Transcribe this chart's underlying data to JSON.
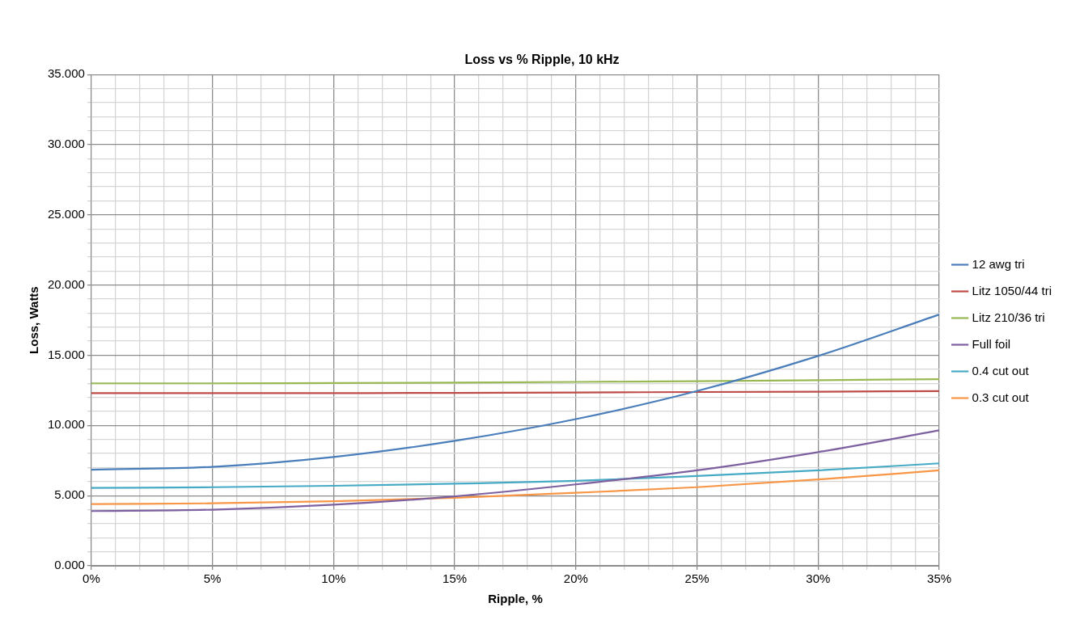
{
  "chart_data": {
    "type": "line",
    "title": "Loss vs % Ripple, 10 kHz",
    "xlabel": "Ripple, %",
    "ylabel": "Loss, Watts",
    "x": [
      0,
      5,
      10,
      15,
      20,
      25,
      30,
      35
    ],
    "series": [
      {
        "name": "12 awg tri",
        "color": "#4a7ebb",
        "values": [
          6.85,
          7.05,
          7.75,
          8.9,
          10.45,
          12.45,
          14.95,
          17.9
        ]
      },
      {
        "name": "Litz 1050/44 tri",
        "color": "#be4b48",
        "values": [
          12.3,
          12.3,
          12.3,
          12.32,
          12.35,
          12.38,
          12.4,
          12.45
        ]
      },
      {
        "name": "Litz 210/36 tri",
        "color": "#98b954",
        "values": [
          13.0,
          13.0,
          13.02,
          13.05,
          13.1,
          13.15,
          13.22,
          13.3
        ]
      },
      {
        "name": "Full foil",
        "color": "#7d60a0",
        "values": [
          3.9,
          4.0,
          4.35,
          4.95,
          5.8,
          6.8,
          8.1,
          9.65
        ]
      },
      {
        "name": "0.4 cut out",
        "color": "#46aac5",
        "values": [
          5.55,
          5.6,
          5.7,
          5.85,
          6.05,
          6.4,
          6.8,
          7.3
        ]
      },
      {
        "name": "0.3 cut out",
        "color": "#f79646",
        "values": [
          4.4,
          4.45,
          4.6,
          4.85,
          5.2,
          5.6,
          6.15,
          6.8
        ]
      }
    ],
    "xlim": [
      0,
      35
    ],
    "xticks": [
      {
        "value": 0,
        "label": "0%"
      },
      {
        "value": 1,
        "label": null
      },
      {
        "value": 2,
        "label": null
      },
      {
        "value": 3,
        "label": null
      },
      {
        "value": 4,
        "label": null
      },
      {
        "value": 5,
        "label": "5%"
      },
      {
        "value": 6,
        "label": null
      },
      {
        "value": 7,
        "label": null
      },
      {
        "value": 8,
        "label": null
      },
      {
        "value": 9,
        "label": null
      },
      {
        "value": 10,
        "label": "10%"
      },
      {
        "value": 11,
        "label": null
      },
      {
        "value": 12,
        "label": null
      },
      {
        "value": 13,
        "label": null
      },
      {
        "value": 14,
        "label": null
      },
      {
        "value": 15,
        "label": "15%"
      },
      {
        "value": 16,
        "label": null
      },
      {
        "value": 17,
        "label": null
      },
      {
        "value": 18,
        "label": null
      },
      {
        "value": 19,
        "label": null
      },
      {
        "value": 20,
        "label": "20%"
      },
      {
        "value": 21,
        "label": null
      },
      {
        "value": 22,
        "label": null
      },
      {
        "value": 23,
        "label": null
      },
      {
        "value": 24,
        "label": null
      },
      {
        "value": 25,
        "label": "25%"
      },
      {
        "value": 26,
        "label": null
      },
      {
        "value": 27,
        "label": null
      },
      {
        "value": 28,
        "label": null
      },
      {
        "value": 29,
        "label": null
      },
      {
        "value": 30,
        "label": "30%"
      },
      {
        "value": 31,
        "label": null
      },
      {
        "value": 32,
        "label": null
      },
      {
        "value": 33,
        "label": null
      },
      {
        "value": 34,
        "label": null
      },
      {
        "value": 35,
        "label": "35%"
      }
    ],
    "ylim": [
      0,
      35
    ],
    "yticks": [
      {
        "value": 0,
        "label": "0.000"
      },
      {
        "value": 1,
        "label": null
      },
      {
        "value": 2,
        "label": null
      },
      {
        "value": 3,
        "label": null
      },
      {
        "value": 4,
        "label": null
      },
      {
        "value": 5,
        "label": "5.000"
      },
      {
        "value": 6,
        "label": null
      },
      {
        "value": 7,
        "label": null
      },
      {
        "value": 8,
        "label": null
      },
      {
        "value": 9,
        "label": null
      },
      {
        "value": 10,
        "label": "10.000"
      },
      {
        "value": 11,
        "label": null
      },
      {
        "value": 12,
        "label": null
      },
      {
        "value": 13,
        "label": null
      },
      {
        "value": 14,
        "label": null
      },
      {
        "value": 15,
        "label": "15.000"
      },
      {
        "value": 16,
        "label": null
      },
      {
        "value": 17,
        "label": null
      },
      {
        "value": 18,
        "label": null
      },
      {
        "value": 19,
        "label": null
      },
      {
        "value": 20,
        "label": "20.000"
      },
      {
        "value": 21,
        "label": null
      },
      {
        "value": 22,
        "label": null
      },
      {
        "value": 23,
        "label": null
      },
      {
        "value": 24,
        "label": null
      },
      {
        "value": 25,
        "label": "25.000"
      },
      {
        "value": 26,
        "label": null
      },
      {
        "value": 27,
        "label": null
      },
      {
        "value": 28,
        "label": null
      },
      {
        "value": 29,
        "label": null
      },
      {
        "value": 30,
        "label": "30.000"
      },
      {
        "value": 31,
        "label": null
      },
      {
        "value": 32,
        "label": null
      },
      {
        "value": 33,
        "label": null
      },
      {
        "value": 34,
        "label": null
      },
      {
        "value": 35,
        "label": "35.000"
      }
    ],
    "grid": true,
    "legend": "right",
    "marker": "none",
    "line_style": "solid"
  }
}
